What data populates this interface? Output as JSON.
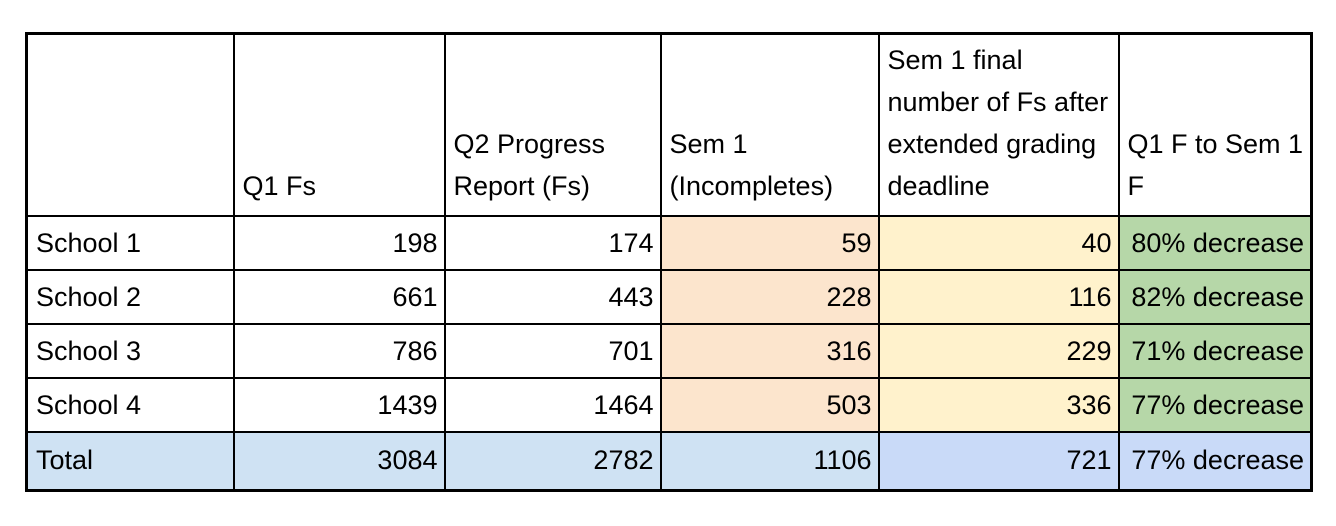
{
  "table": {
    "header": [
      "",
      "Q1 Fs",
      "Q2 Progress Report (Fs)",
      "Sem 1 (Incompletes)",
      "Sem 1 final number of Fs after extended grading deadline",
      "Q1 F to Sem 1 F"
    ],
    "rows": [
      {
        "cells": [
          "School 1",
          "198",
          "174",
          "59",
          "40",
          "80% decrease"
        ]
      },
      {
        "cells": [
          "School 2",
          "661",
          "443",
          "228",
          "116",
          "82% decrease"
        ]
      },
      {
        "cells": [
          "School 3",
          "786",
          "701",
          "316",
          "229",
          "71% decrease"
        ]
      },
      {
        "cells": [
          "School 4",
          "1439",
          "1464",
          "503",
          "336",
          "77% decrease"
        ]
      },
      {
        "cells": [
          "Total",
          "3084",
          "2782",
          "1106",
          "721",
          "77% decrease"
        ]
      }
    ]
  },
  "colors": {
    "incompletes_column_fill": "#FCE5CD",
    "final_fs_column_fill": "#FFF2CC",
    "decrease_column_fill": "#B6D7A8",
    "total_row_fill": "#CFE2F3",
    "total_row_accent_fill": "#C9DAF8",
    "border": "#000000",
    "text": "#000000",
    "background": "#FFFFFF"
  },
  "chart_data": {
    "type": "table",
    "title": "",
    "columns": [
      "",
      "Q1 Fs",
      "Q2 Progress Report (Fs)",
      "Sem 1 (Incompletes)",
      "Sem 1 final number of Fs after extended grading deadline",
      "Q1 F to Sem 1 F"
    ],
    "rows": [
      [
        "School 1",
        198,
        174,
        59,
        40,
        "80% decrease"
      ],
      [
        "School 2",
        661,
        443,
        228,
        116,
        "82% decrease"
      ],
      [
        "School 3",
        786,
        701,
        316,
        229,
        "71% decrease"
      ],
      [
        "School 4",
        1439,
        1464,
        503,
        336,
        "77% decrease"
      ],
      [
        "Total",
        3084,
        2782,
        1106,
        721,
        "77% decrease"
      ]
    ]
  }
}
